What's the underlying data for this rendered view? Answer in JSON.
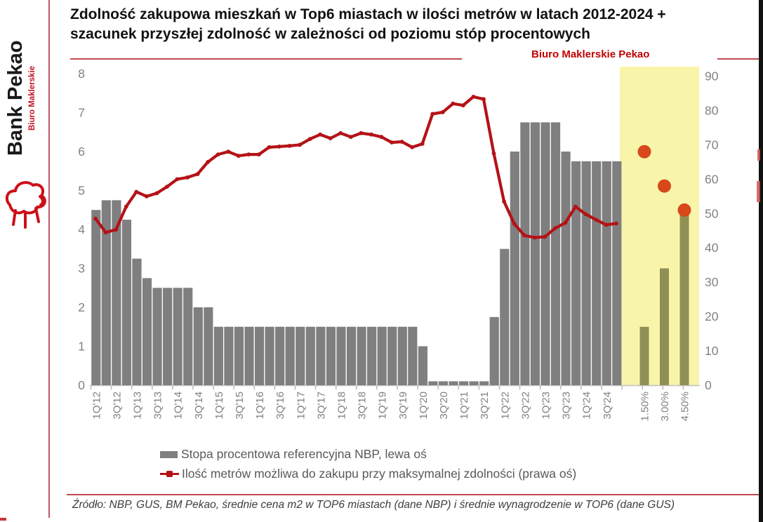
{
  "branding": {
    "bank_name": "Bank Pekao",
    "unit_name": "Biuro Maklerskie",
    "watermark": "Biuro Maklerskie Pekao"
  },
  "title": {
    "line1": "Zdolność zakupowa mieszkań w Top6 miastach w ilości metrów w latach 2012-2024 +",
    "line2": "szacunek przyszłej zdolność w zależności od poziomu stóp procentowych"
  },
  "legend": {
    "bar_label": "Stopa procentowa referencyjna NBP, lewa oś",
    "line_label": "Ilość metrów możliwa do zakupu przy maksymalnej zdolności (prawa oś)"
  },
  "source": "Źródło: NBP, GUS, BM Pekao, średnie cena m2 w TOP6 miastach (dane NBP) i średnie wynagrodzenie w TOP6 (dane GUS)",
  "colors": {
    "bar_gray": "#7f7f7f",
    "line_red": "#b41217",
    "scenario_band_yellow": "#f8f5ab",
    "scenario_bar_olive": "#8f9055",
    "scenario_dot_orange": "#d8481b",
    "axis_text_gray": "#828282",
    "tick_gray": "#bfbfbf",
    "accent_red": "#c00000"
  },
  "chart_data": {
    "type": "bar",
    "subtype": "combo bar(left axis) + line(right axis) + scenario scatter",
    "left_axis": {
      "min": 0,
      "max": 8,
      "step": 1,
      "tick_labels": [
        "8",
        "7",
        "6",
        "5",
        "4",
        "3",
        "2",
        "1",
        "0"
      ]
    },
    "right_axis": {
      "min": 0,
      "max": 90,
      "step": 10,
      "tick_labels": [
        "90",
        "80",
        "70",
        "60",
        "50",
        "40",
        "30",
        "20",
        "10",
        "0"
      ]
    },
    "x_tick_labels": [
      "1Q'12",
      "3Q'12",
      "1Q'13",
      "3Q'13",
      "1Q'14",
      "3Q'14",
      "1Q'15",
      "3Q'15",
      "1Q'16",
      "3Q'16",
      "1Q'17",
      "3Q'17",
      "1Q'18",
      "3Q'18",
      "1Q'19",
      "3Q'19",
      "1Q'20",
      "3Q'20",
      "1Q'21",
      "3Q'21",
      "1Q'22",
      "3Q'22",
      "1Q'23",
      "3Q'23",
      "1Q'24",
      "3Q'24"
    ],
    "x_label_note": "labels shown every second quarter; 52 quarterly observations 1Q'12-4Q'24",
    "series": [
      {
        "name": "Stopa procentowa referencyjna NBP, lewa oś",
        "type": "bar",
        "axis": "left",
        "values": [
          4.5,
          4.75,
          4.75,
          4.25,
          3.25,
          2.75,
          2.5,
          2.5,
          2.5,
          2.5,
          2.0,
          2.0,
          1.5,
          1.5,
          1.5,
          1.5,
          1.5,
          1.5,
          1.5,
          1.5,
          1.5,
          1.5,
          1.5,
          1.5,
          1.5,
          1.5,
          1.5,
          1.5,
          1.5,
          1.5,
          1.5,
          1.5,
          1.0,
          0.1,
          0.1,
          0.1,
          0.1,
          0.1,
          0.1,
          1.75,
          3.5,
          6.0,
          6.75,
          6.75,
          6.75,
          6.75,
          6.0,
          5.75,
          5.75,
          5.75,
          5.75,
          5.75
        ]
      },
      {
        "name": "Ilość metrów możliwa do zakupu przy maksymalnej zdolności (prawa oś)",
        "type": "line",
        "axis": "right",
        "values": [
          48.5,
          44.5,
          45.3,
          52,
          56.3,
          55,
          55.9,
          57.8,
          60,
          60.5,
          61.5,
          65,
          67.2,
          68,
          66.8,
          67.2,
          67.2,
          69.3,
          69.5,
          69.7,
          70,
          71.7,
          73,
          71.9,
          73.4,
          72.3,
          73.4,
          73,
          72.3,
          70.7,
          70.9,
          69.3,
          70.3,
          79,
          79.5,
          82,
          81.5,
          84,
          83.3,
          67.5,
          53.5,
          47,
          43.6,
          43,
          43.2,
          45.7,
          47.3,
          52,
          49.8,
          48.2,
          46.7,
          47.1
        ]
      }
    ],
    "scenario": {
      "description": "future capacity estimate depending on interest rate level",
      "labels": [
        "1.50%",
        "3.00%",
        "4.50%"
      ],
      "rate_bars_left_axis": [
        1.5,
        3.0,
        4.5
      ],
      "meters_dots_right_axis": [
        68,
        58,
        51
      ]
    },
    "grid": false,
    "legend_position": "bottom"
  }
}
